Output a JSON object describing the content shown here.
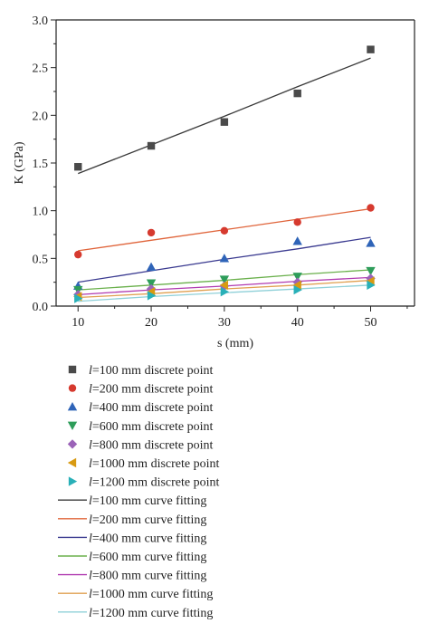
{
  "chart_data": {
    "type": "scatter",
    "xlabel": "s (mm)",
    "ylabel": "K (GPa)",
    "xlim": [
      7,
      56
    ],
    "ylim": [
      0,
      3.0
    ],
    "xticks": [
      10,
      20,
      30,
      40,
      50
    ],
    "yticks": [
      0.0,
      0.5,
      1.0,
      1.5,
      2.0,
      2.5,
      3.0
    ],
    "x": [
      10,
      20,
      30,
      40,
      50
    ],
    "grid": false,
    "legend_placement": "bottom",
    "series": [
      {
        "name": "l=100 mm discrete point",
        "kind": "points",
        "marker": "square",
        "color": "#4a4a4a",
        "values": [
          1.46,
          1.68,
          1.93,
          2.23,
          2.69
        ]
      },
      {
        "name": "l=200 mm discrete point",
        "kind": "points",
        "marker": "circle",
        "color": "#d63a2f",
        "values": [
          0.54,
          0.77,
          0.79,
          0.88,
          1.03
        ]
      },
      {
        "name": "l=400 mm discrete point",
        "kind": "points",
        "marker": "triangle-up",
        "color": "#2f64b8",
        "values": [
          0.21,
          0.41,
          0.5,
          0.68,
          0.66
        ]
      },
      {
        "name": "l=600 mm discrete point",
        "kind": "points",
        "marker": "triangle-down",
        "color": "#2e9d5a",
        "values": [
          0.17,
          0.24,
          0.28,
          0.31,
          0.37
        ]
      },
      {
        "name": "l=800 mm discrete point",
        "kind": "points",
        "marker": "diamond",
        "color": "#9b63b8",
        "values": [
          0.12,
          0.18,
          0.21,
          0.25,
          0.29
        ]
      },
      {
        "name": "l=1000 mm discrete point",
        "kind": "points",
        "marker": "triangle-left",
        "color": "#d89a12",
        "values": [
          0.1,
          0.15,
          0.22,
          0.22,
          0.26
        ]
      },
      {
        "name": "l=1200 mm discrete point",
        "kind": "points",
        "marker": "triangle-right",
        "color": "#29b0b8",
        "values": [
          0.08,
          0.11,
          0.15,
          0.17,
          0.22
        ]
      },
      {
        "name": "l=100 mm curve fitting",
        "kind": "line",
        "color": "#3a3a3a",
        "values": [
          1.39,
          1.69,
          1.99,
          2.3,
          2.6
        ]
      },
      {
        "name": "l=200 mm curve fitting",
        "kind": "line",
        "color": "#e0643a",
        "values": [
          0.58,
          0.69,
          0.8,
          0.91,
          1.02
        ]
      },
      {
        "name": "l=400 mm curve fitting",
        "kind": "line",
        "color": "#3a3a90",
        "values": [
          0.25,
          0.37,
          0.49,
          0.6,
          0.72
        ]
      },
      {
        "name": "l=600 mm curve fitting",
        "kind": "line",
        "color": "#6ab04c",
        "values": [
          0.17,
          0.22,
          0.27,
          0.33,
          0.38
        ]
      },
      {
        "name": "l=800 mm curve fitting",
        "kind": "line",
        "color": "#b03ab0",
        "values": [
          0.12,
          0.17,
          0.21,
          0.26,
          0.3
        ]
      },
      {
        "name": "l=1000 mm curve fitting",
        "kind": "line",
        "color": "#e0a050",
        "values": [
          0.09,
          0.13,
          0.18,
          0.22,
          0.27
        ]
      },
      {
        "name": "l=1200 mm curve fitting",
        "kind": "line",
        "color": "#8fd0d8",
        "values": [
          0.05,
          0.1,
          0.14,
          0.18,
          0.22
        ]
      }
    ]
  }
}
